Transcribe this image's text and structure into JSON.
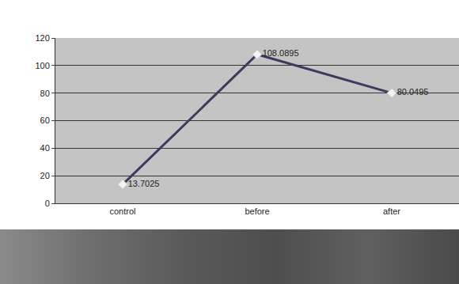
{
  "chart_data": {
    "type": "line",
    "categories": [
      "control",
      "before",
      "after"
    ],
    "values": [
      13.7025,
      108.0895,
      80.0495
    ],
    "color": "#3b3b5c",
    "marker": "diamond",
    "ylim": [
      0,
      120
    ],
    "yticks": [
      0,
      20,
      40,
      60,
      80,
      100,
      120
    ],
    "grid": true,
    "data_labels": true
  }
}
